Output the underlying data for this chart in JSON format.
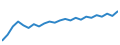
{
  "x": [
    0,
    1,
    2,
    3,
    4,
    5,
    6,
    7,
    8,
    9,
    10,
    11,
    12,
    13,
    14,
    15,
    16,
    17,
    18,
    19,
    20,
    21,
    22
  ],
  "y": [
    0.05,
    0.2,
    0.42,
    0.55,
    0.45,
    0.38,
    0.48,
    0.42,
    0.5,
    0.55,
    0.52,
    0.58,
    0.62,
    0.58,
    0.65,
    0.6,
    0.68,
    0.65,
    0.72,
    0.68,
    0.76,
    0.7,
    0.82
  ],
  "line_color": "#2e86c8",
  "line_width": 1.4,
  "bg_color": "#ffffff"
}
